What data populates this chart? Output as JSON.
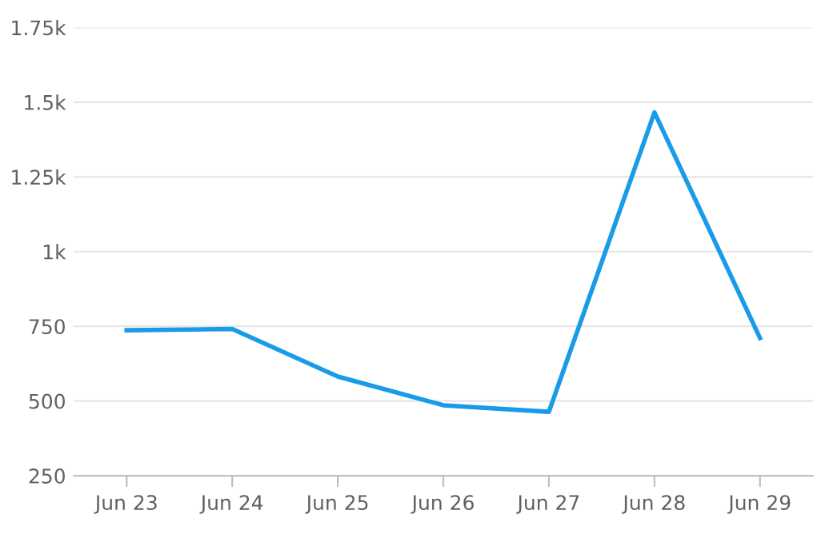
{
  "chart_data": {
    "type": "line",
    "categories": [
      "Jun 23",
      "Jun 24",
      "Jun 25",
      "Jun 26",
      "Jun 27",
      "Jun 28",
      "Jun 29"
    ],
    "series": [
      {
        "color": "#1a9be8",
        "values": [
          737,
          741,
          582,
          486,
          464,
          1466,
          711
        ]
      }
    ],
    "ylim": [
      250,
      1750
    ],
    "yticks": [
      250,
      500,
      750,
      {
        "value": 1000,
        "label": "1k"
      },
      {
        "value": 1250,
        "label": "1.25k"
      },
      {
        "value": 1500,
        "label": "1.5k"
      },
      {
        "value": 1750,
        "label": "1.75k"
      }
    ],
    "grid": "y",
    "marker": "none",
    "line_style": "solid"
  }
}
